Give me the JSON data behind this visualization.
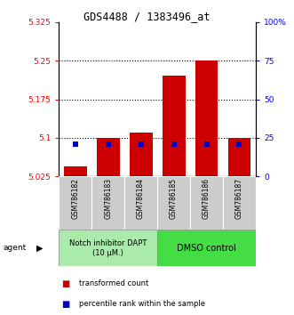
{
  "title": "GDS4488 / 1383496_at",
  "samples": [
    "GSM786182",
    "GSM786183",
    "GSM786184",
    "GSM786185",
    "GSM786186",
    "GSM786187"
  ],
  "red_bar_tops": [
    5.045,
    5.1,
    5.11,
    5.22,
    5.25,
    5.1
  ],
  "blue_values": [
    5.088,
    5.088,
    5.088,
    5.088,
    5.088,
    5.088
  ],
  "y_min": 5.025,
  "y_max": 5.325,
  "y_ticks_left": [
    5.025,
    5.1,
    5.175,
    5.25,
    5.325
  ],
  "y_ticks_left_labels": [
    "5.025",
    "5.1",
    "5.175",
    "5.25",
    "5.325"
  ],
  "y_ticks_right_pct": [
    0,
    25,
    50,
    75,
    100
  ],
  "y_ticks_right_labels": [
    "0",
    "25",
    "50",
    "75",
    "100%"
  ],
  "group1_label": "Notch inhibitor DAPT\n(10 μM.)",
  "group2_label": "DMSO control",
  "agent_label": "agent",
  "legend_red": "transformed count",
  "legend_blue": "percentile rank within the sample",
  "bar_color": "#cc0000",
  "blue_color": "#0000cc",
  "group1_bg": "#aaeaaa",
  "group2_bg": "#44dd44",
  "tick_label_bg": "#cccccc",
  "bar_bottom": 5.025,
  "bar_width": 0.7
}
